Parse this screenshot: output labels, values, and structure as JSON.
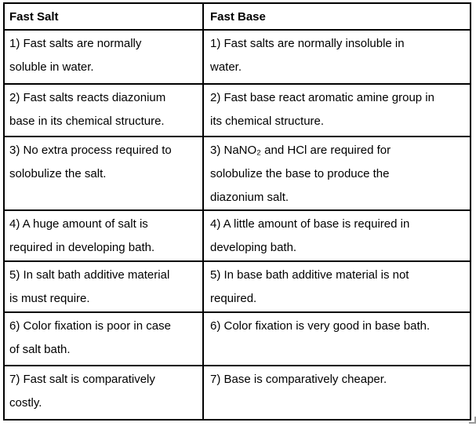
{
  "table": {
    "headers": {
      "fast_salt": "Fast Salt",
      "fast_base": "Fast Base"
    },
    "rows": [
      {
        "fast_salt": "1) Fast salts are normally\nsoluble in water.",
        "fast_base": "1) Fast salts are normally insoluble in\nwater."
      },
      {
        "fast_salt": "2) Fast salts reacts diazonium\nbase in its chemical structure.",
        "fast_base": "2) Fast base react aromatic amine group in\nits chemical structure."
      },
      {
        "fast_salt": "3) No extra process required to\nsolobulize the salt.",
        "fast_base": "3) NaNO₂ and HCl are required for\nsolobulize the base to produce the\ndiazonium salt."
      },
      {
        "fast_salt": "4) A huge amount of salt is\nrequired in developing bath.",
        "fast_base": "4) A little amount of base is required in\ndeveloping bath."
      },
      {
        "fast_salt": "5) In salt bath additive material\nis must require.",
        "fast_base": "5) In base bath additive material is not\nrequired."
      },
      {
        "fast_salt": "6) Color fixation is poor in case\nof salt bath.",
        "fast_base": "6) Color fixation is very good in base bath."
      },
      {
        "fast_salt": "7) Fast salt is comparatively\ncostly.",
        "fast_base": "7) Base is comparatively cheaper."
      }
    ]
  },
  "colors": {
    "border": "#000000",
    "text": "#000000",
    "background": "#ffffff",
    "resize_handle": "#9b9b9b"
  }
}
